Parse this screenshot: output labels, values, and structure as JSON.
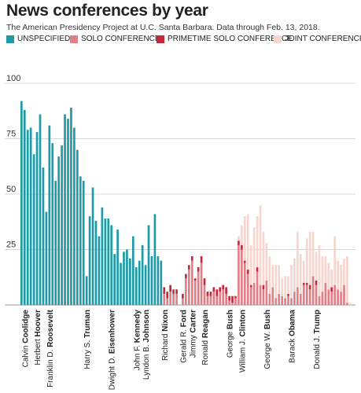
{
  "header": {
    "title": "News conferences by year",
    "subtitle": "The American Presidency Project at U.C. Santa Barbara. Data through Feb. 13, 2018."
  },
  "legend": [
    {
      "label": "UNSPECIFIED",
      "color": "#1d9ba8"
    },
    {
      "label": "SOLO CONFERENCE",
      "color": "#e07f86"
    },
    {
      "label": "PRIMETIME SOLO CONFERENCE",
      "color": "#c8263c"
    },
    {
      "label": "JOINT CONFERENCE",
      "color": "#f7d6cf"
    }
  ],
  "chart_data": {
    "type": "bar",
    "stacked": true,
    "ylim": [
      0,
      100
    ],
    "yticks": [
      25,
      50,
      75,
      100
    ],
    "grid": true,
    "series": [
      {
        "name": "UNSPECIFIED",
        "color": "#1d9ba8"
      },
      {
        "name": "SOLO CONFERENCE",
        "color": "#e07f86"
      },
      {
        "name": "PRIMETIME SOLO CONFERENCE",
        "color": "#c8263c"
      },
      {
        "name": "JOINT CONFERENCE",
        "color": "#f7d6cf"
      }
    ],
    "bars": [
      [
        92,
        0,
        0,
        0
      ],
      [
        88,
        0,
        0,
        0
      ],
      [
        79,
        0,
        0,
        0
      ],
      [
        80,
        0,
        0,
        0
      ],
      [
        68,
        0,
        0,
        0
      ],
      [
        78,
        0,
        0,
        0
      ],
      [
        86,
        0,
        0,
        0
      ],
      [
        62,
        0,
        0,
        0
      ],
      [
        42,
        0,
        0,
        0
      ],
      [
        81,
        0,
        0,
        0
      ],
      [
        73,
        0,
        0,
        0
      ],
      [
        56,
        0,
        0,
        0
      ],
      [
        67,
        0,
        0,
        0
      ],
      [
        72,
        0,
        0,
        0
      ],
      [
        86,
        0,
        0,
        0
      ],
      [
        84,
        0,
        0,
        0
      ],
      [
        89,
        0,
        0,
        0
      ],
      [
        80,
        0,
        0,
        0
      ],
      [
        70,
        0,
        0,
        0
      ],
      [
        58,
        0,
        0,
        0
      ],
      [
        56,
        0,
        0,
        0
      ],
      [
        13,
        0,
        0,
        0
      ],
      [
        40,
        0,
        0,
        0
      ],
      [
        53,
        0,
        0,
        0
      ],
      [
        38,
        0,
        0,
        0
      ],
      [
        31,
        0,
        0,
        0
      ],
      [
        44,
        0,
        0,
        0
      ],
      [
        39,
        0,
        0,
        0
      ],
      [
        39,
        0,
        0,
        0
      ],
      [
        36,
        0,
        0,
        0
      ],
      [
        23,
        0,
        0,
        0
      ],
      [
        34,
        0,
        0,
        0
      ],
      [
        19,
        0,
        0,
        0
      ],
      [
        24,
        0,
        0,
        0
      ],
      [
        25,
        0,
        0,
        0
      ],
      [
        21,
        0,
        0,
        0
      ],
      [
        31,
        0,
        0,
        0
      ],
      [
        17,
        0,
        0,
        0
      ],
      [
        20,
        0,
        0,
        0
      ],
      [
        27,
        0,
        0,
        0
      ],
      [
        18,
        0,
        0,
        0
      ],
      [
        36,
        0,
        0,
        0
      ],
      [
        22,
        0,
        0,
        0
      ],
      [
        41,
        0,
        0,
        0
      ],
      [
        22,
        0,
        0,
        0
      ],
      [
        20,
        0,
        0,
        0
      ],
      [
        0,
        5,
        3,
        0
      ],
      [
        0,
        3,
        3,
        0
      ],
      [
        0,
        6,
        3,
        0
      ],
      [
        0,
        5,
        2,
        0
      ],
      [
        0,
        5,
        2,
        0
      ],
      [
        0,
        0,
        0,
        0
      ],
      [
        0,
        3,
        2,
        0
      ],
      [
        0,
        12,
        2,
        0
      ],
      [
        0,
        16,
        2,
        0
      ],
      [
        0,
        20,
        2,
        0
      ],
      [
        0,
        11,
        1,
        0
      ],
      [
        0,
        15,
        2,
        0
      ],
      [
        0,
        19,
        3,
        0
      ],
      [
        0,
        9,
        3,
        0
      ],
      [
        0,
        4,
        2,
        0
      ],
      [
        0,
        4,
        2,
        0
      ],
      [
        0,
        6,
        2,
        0
      ],
      [
        0,
        4,
        3,
        0
      ],
      [
        0,
        6,
        2,
        0
      ],
      [
        0,
        7,
        2,
        0
      ],
      [
        0,
        5,
        3,
        0
      ],
      [
        0,
        2,
        2,
        0
      ],
      [
        0,
        1,
        3,
        0
      ],
      [
        0,
        3,
        1,
        0
      ],
      [
        0,
        27,
        2,
        2
      ],
      [
        0,
        25,
        2,
        9
      ],
      [
        0,
        19,
        1,
        20
      ],
      [
        0,
        14,
        2,
        25
      ],
      [
        0,
        8,
        1,
        18
      ],
      [
        0,
        10,
        0,
        25
      ],
      [
        0,
        15,
        2,
        23
      ],
      [
        0,
        9,
        0,
        36
      ],
      [
        0,
        7,
        2,
        24
      ],
      [
        0,
        11,
        0,
        17
      ],
      [
        0,
        5,
        0,
        17
      ],
      [
        0,
        8,
        0,
        10
      ],
      [
        0,
        3,
        0,
        15
      ],
      [
        0,
        5,
        0,
        13
      ],
      [
        0,
        4,
        0,
        8
      ],
      [
        0,
        3,
        0,
        10
      ],
      [
        0,
        4,
        1,
        8
      ],
      [
        0,
        3,
        0,
        15
      ],
      [
        0,
        6,
        0,
        15
      ],
      [
        0,
        8,
        0,
        25
      ],
      [
        0,
        5,
        0,
        18
      ],
      [
        0,
        9,
        1,
        10
      ],
      [
        0,
        9,
        1,
        20
      ],
      [
        0,
        7,
        2,
        24
      ],
      [
        0,
        13,
        0,
        20
      ],
      [
        0,
        9,
        2,
        13
      ],
      [
        0,
        4,
        0,
        23
      ],
      [
        0,
        6,
        0,
        16
      ],
      [
        0,
        10,
        0,
        12
      ],
      [
        0,
        7,
        0,
        12
      ],
      [
        0,
        6,
        2,
        8
      ],
      [
        0,
        9,
        0,
        22
      ],
      [
        0,
        7,
        0,
        13
      ],
      [
        0,
        6,
        0,
        12
      ],
      [
        0,
        9,
        0,
        12
      ],
      [
        0,
        1,
        0,
        21
      ],
      [
        0,
        0,
        0,
        1
      ]
    ],
    "presidents": [
      {
        "name": "Calvin ",
        "bold": "Coolidge",
        "bar": 1
      },
      {
        "name": "Herbert ",
        "bold": "Hoover",
        "bar": 5
      },
      {
        "name": "Franklin D. ",
        "bold": "Roosevelt",
        "bar": 9
      },
      {
        "name": "Harry S. ",
        "bold": "Truman",
        "bar": 21
      },
      {
        "name": "Dwight D. ",
        "bold": "Eisenhower",
        "bar": 29
      },
      {
        "name": "John F. ",
        "bold": "Kennedy",
        "bar": 37
      },
      {
        "name": "Lyndon B. ",
        "bold": "Johnson",
        "bar": 40
      },
      {
        "name": "Richard ",
        "bold": "Nixon",
        "bar": 46
      },
      {
        "name": "Gerald R. ",
        "bold": "Ford",
        "bar": 52
      },
      {
        "name": "Jimmy ",
        "bold": "Carter",
        "bar": 55
      },
      {
        "name": "Ronald ",
        "bold": "Reagan",
        "bar": 59
      },
      {
        "name": "George ",
        "bold": "Bush",
        "bar": 67
      },
      {
        "name": "William J. ",
        "bold": "Clinton",
        "bar": 71
      },
      {
        "name": "George W. ",
        "bold": "Bush",
        "bar": 79
      },
      {
        "name": "Barack ",
        "bold": "Obama",
        "bar": 87
      },
      {
        "name": "Donald J. ",
        "bold": "Trump",
        "bar": 95
      }
    ]
  }
}
